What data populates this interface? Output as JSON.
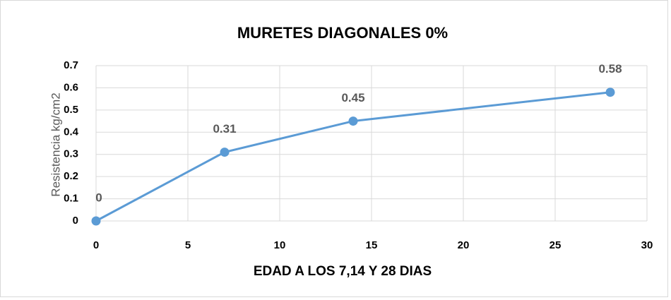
{
  "chart_data": {
    "type": "line",
    "title": "MURETES DIAGONALES 0%",
    "x_label": "EDAD A LOS 7,14 Y 28 DIAS",
    "y_label": "Resistencia kg/cm2",
    "x": [
      0,
      7,
      14,
      28
    ],
    "series": [
      {
        "name": "Resistencia",
        "color": "#5b9bd5",
        "values": [
          0,
          0.31,
          0.45,
          0.58
        ]
      }
    ],
    "xlim": [
      0,
      30
    ],
    "xticks": [
      0,
      5,
      10,
      15,
      20,
      25,
      30
    ],
    "ylim": [
      0,
      0.7
    ],
    "yticks": [
      0,
      0.1,
      0.2,
      0.3,
      0.4,
      0.5,
      0.6,
      0.7
    ],
    "grid": true
  }
}
